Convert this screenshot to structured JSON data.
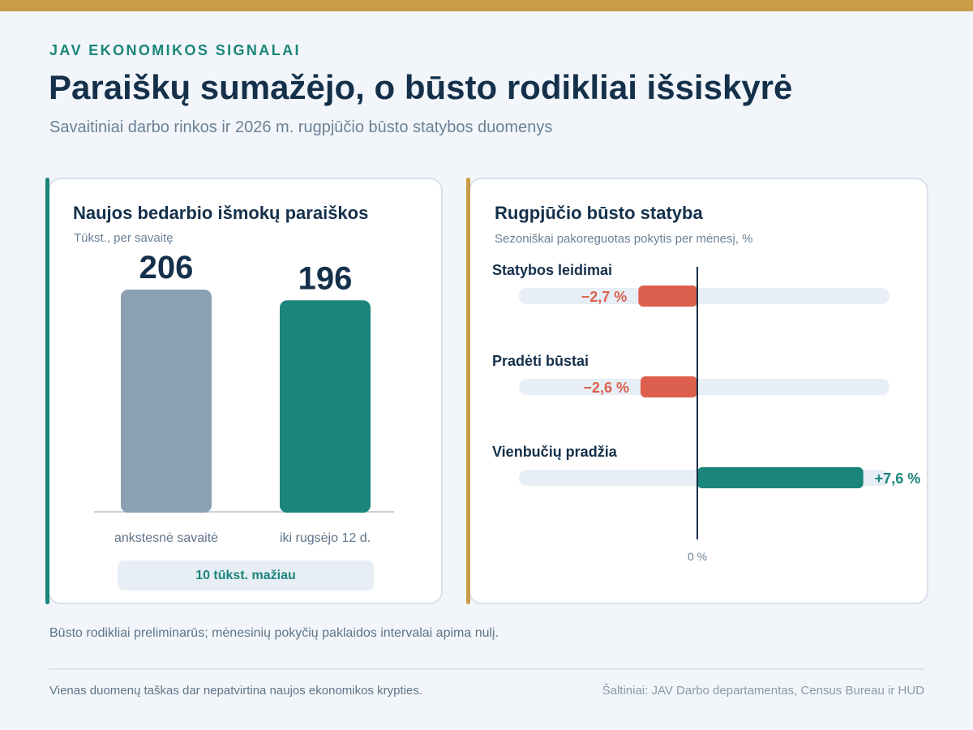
{
  "header": {
    "eyebrow": "JAV EKONOMIKOS SIGNALAI",
    "title": "Paraiškų sumažėjo, o būsto rodikliai išsiskyrė",
    "subtitle": "Savaitiniai darbo rinkos ir 2026 m. rugpjūčio būsto statybos duomenys"
  },
  "colors": {
    "accent_teal": "#1a857a",
    "accent_gold": "#c99c48",
    "negative": "#dc604d",
    "neutral_bar": "#8ca0b4",
    "track": "#e7eef5",
    "ink": "#14304a"
  },
  "chart_data": [
    {
      "type": "bar",
      "title": "Naujos bedarbio išmokų paraiškos",
      "subtitle": "Tūkst., per savaitę",
      "categories": [
        "ankstesnė savaitė",
        "iki rugsėjo 12 d."
      ],
      "values": [
        206,
        196
      ],
      "value_labels": [
        "206",
        "196"
      ],
      "colors": [
        "#8ca0b4",
        "#1a857a"
      ],
      "ylim": [
        0,
        215
      ],
      "annotation": "10 tūkst. mažiau",
      "grid": false
    },
    {
      "type": "bar",
      "orientation": "horizontal",
      "title": "Rugpjūčio būsto statyba",
      "subtitle": "Sezoniškai pakoreguotas pokytis per mėnesį, %",
      "categories": [
        "Statybos leidimai",
        "Pradėti būstai",
        "Vienbučių pradžia"
      ],
      "values": [
        -2.7,
        -2.6,
        7.6
      ],
      "value_labels": [
        "−2,7 %",
        "−2,6 %",
        "+7,6 %"
      ],
      "xlim": [
        -8.2,
        8.8
      ],
      "zero_label": "0 %",
      "grid": false
    }
  ],
  "notes": {
    "preliminary": "Būsto rodikliai preliminarūs; mėnesinių pokyčių paklaidos intervalai apima nulį."
  },
  "footer": {
    "left": "Vienas duomenų taškas dar nepatvirtina naujos ekonomikos krypties.",
    "right": "Šaltiniai: JAV Darbo departamentas, Census Bureau ir HUD"
  }
}
